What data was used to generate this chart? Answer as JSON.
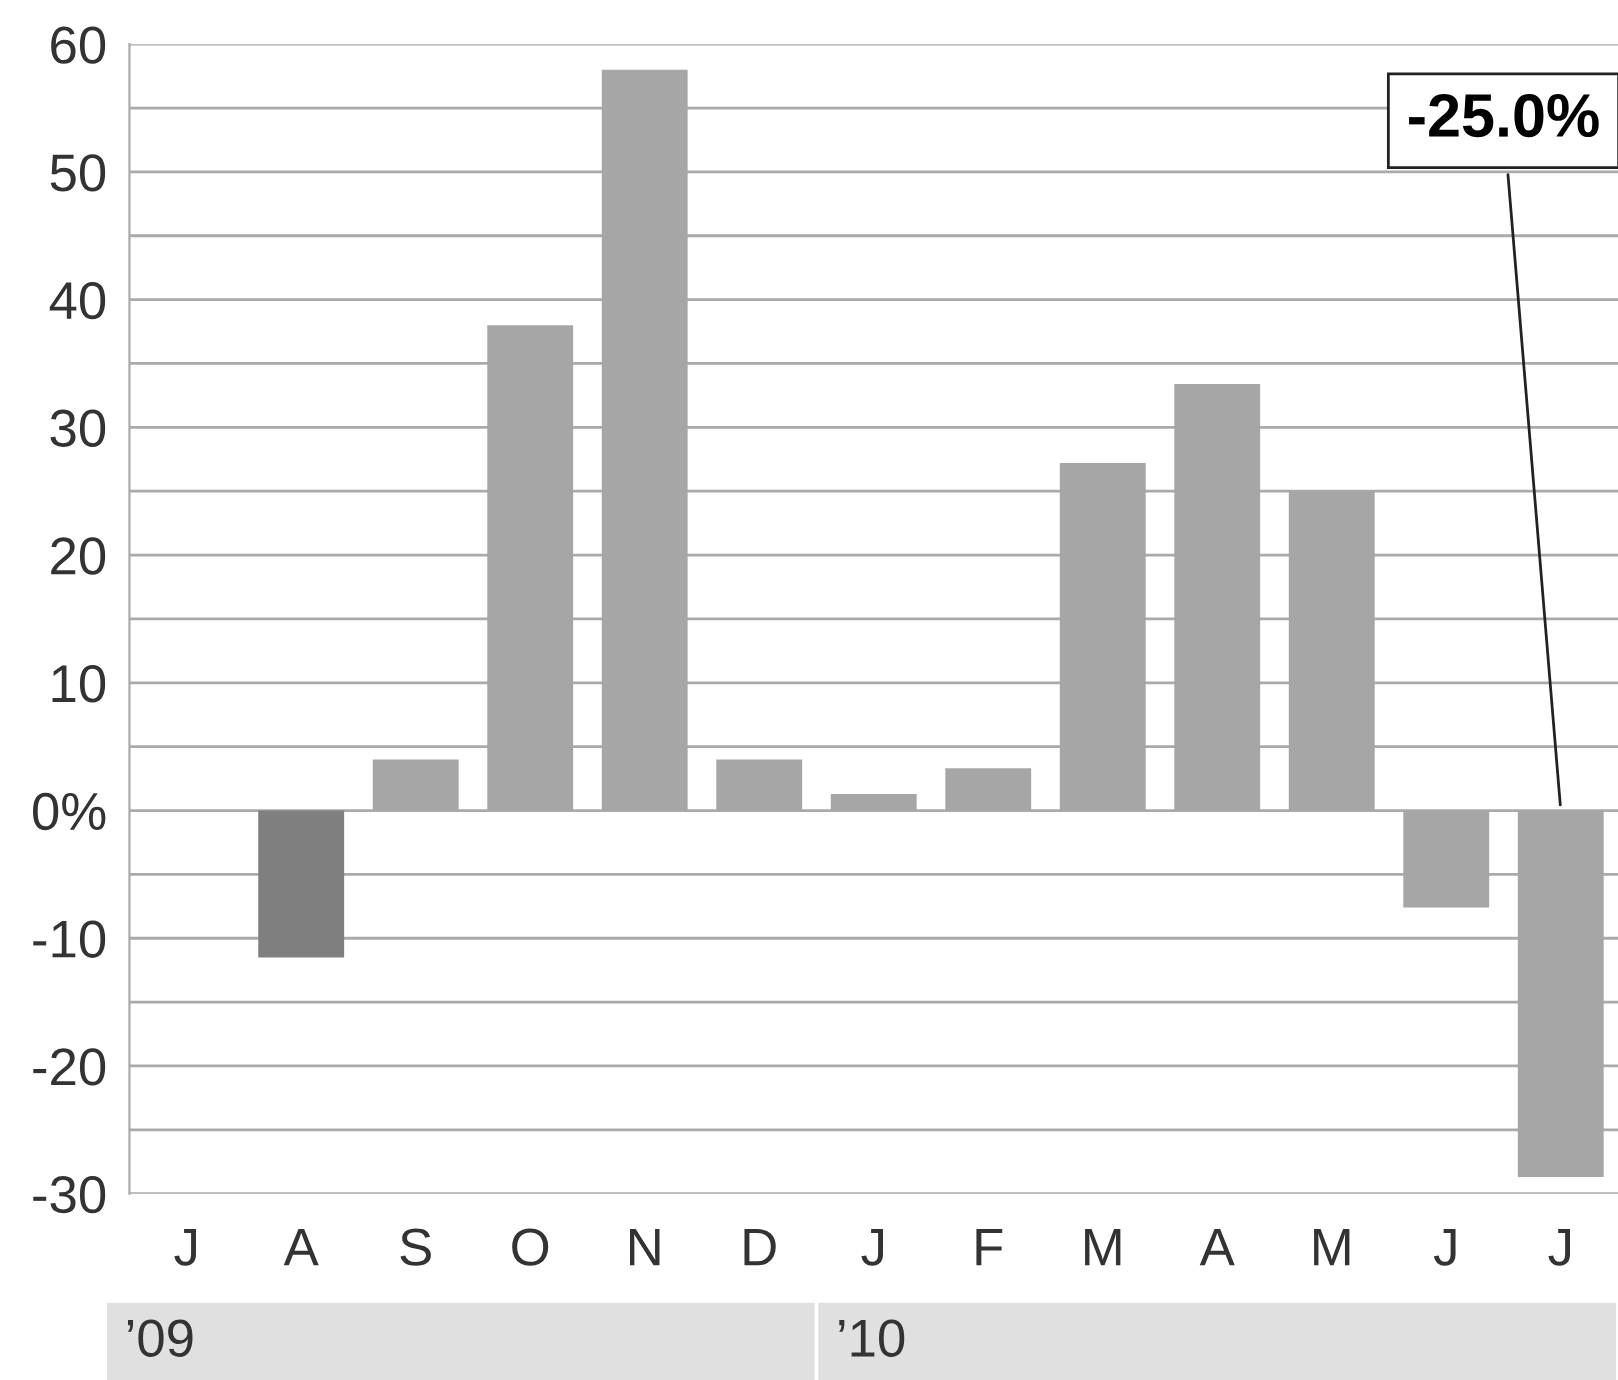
{
  "chart_data": {
    "type": "bar",
    "categories": [
      "J",
      "A",
      "S",
      "O",
      "N",
      "D",
      "J",
      "F",
      "M",
      "A",
      "M",
      "J",
      "J"
    ],
    "values": [
      0,
      -11.5,
      4,
      38,
      58,
      4,
      1.3,
      3.3,
      27.2,
      33.4,
      25,
      -7.6,
      -28.7
    ],
    "colors": [
      "#a6a6a6",
      "#7f7f7f",
      "#a6a6a6",
      "#a6a6a6",
      "#a6a6a6",
      "#a6a6a6",
      "#a6a6a6",
      "#a6a6a6",
      "#a6a6a6",
      "#a6a6a6",
      "#a6a6a6",
      "#a6a6a6",
      "#a6a6a6"
    ],
    "ylim": [
      -30,
      60
    ],
    "yticks": [
      {
        "value": -30,
        "label": "-30"
      },
      {
        "value": -25,
        "label": null
      },
      {
        "value": -20,
        "label": "-20"
      },
      {
        "value": -15,
        "label": null
      },
      {
        "value": -10,
        "label": "-10"
      },
      {
        "value": -5,
        "label": null
      },
      {
        "value": 0,
        "label": "0%"
      },
      {
        "value": 5,
        "label": null
      },
      10,
      {
        "value": 15,
        "label": null
      },
      20,
      {
        "value": 25,
        "label": null
      },
      30,
      {
        "value": 35,
        "label": null
      },
      40,
      {
        "value": 45,
        "label": null
      },
      50,
      {
        "value": 55,
        "label": null
      },
      60
    ],
    "grid": "y",
    "annotations": [
      "-25.0%",
      "’09",
      "’10"
    ]
  }
}
